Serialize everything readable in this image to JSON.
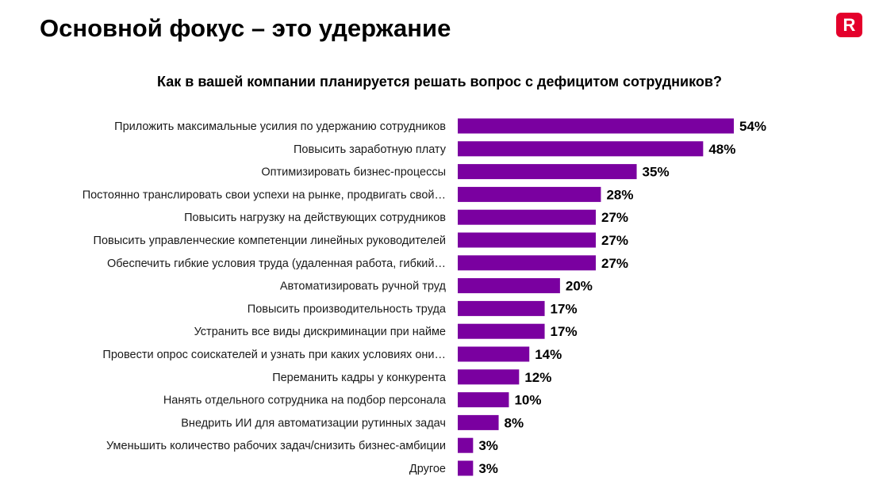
{
  "header": {
    "title": "Основной фокус – это удержание",
    "logo_text": "R",
    "logo_color": "#e4002b"
  },
  "chart_data": {
    "type": "bar",
    "orientation": "horizontal",
    "title": "Как в вашей компании планируется решать вопрос с дефицитом сотрудников?",
    "value_suffix": "%",
    "bar_color": "#7a00a0",
    "categories": [
      "Приложить максимальные усилия по удержанию сотрудников",
      "Повысить заработную плату",
      "Оптимизировать бизнес-процессы",
      "Постоянно транслировать свои успехи на рынке, продвигать свой…",
      "Повысить нагрузку на действующих сотрудников",
      "Повысить управленческие компетенции линейных руководителей",
      "Обеспечить гибкие условия труда (удаленная работа, гибкий…",
      "Автоматизировать ручной труд",
      "Повысить производительность труда",
      "Устранить все виды дискриминации при найме",
      "Провести опрос соискателей и узнать при каких условиях они…",
      "Переманить кадры у конкурента",
      "Нанять отдельного сотрудника на подбор персонала",
      "Внедрить ИИ для автоматизации рутинных задач",
      "Уменьшить количество рабочих задач/снизить бизнес-амбиции",
      "Другое"
    ],
    "values": [
      54,
      48,
      35,
      28,
      27,
      27,
      27,
      20,
      17,
      17,
      14,
      12,
      10,
      8,
      3,
      3
    ]
  }
}
